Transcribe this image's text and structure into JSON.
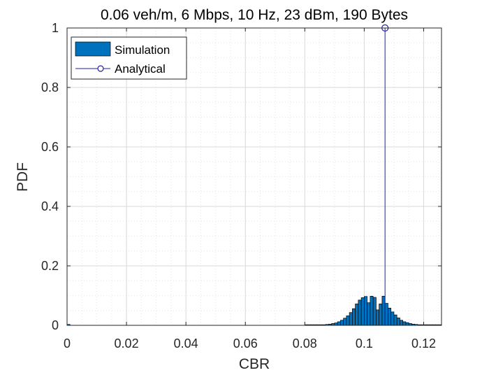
{
  "chart_data": {
    "type": "bar",
    "title": "0.06 veh/m, 6 Mbps, 10 Hz, 23 dBm, 190 Bytes",
    "xlabel": "CBR",
    "ylabel": "PDF",
    "xlim": [
      0,
      0.126
    ],
    "ylim": [
      0,
      1
    ],
    "xticks": [
      0,
      0.02,
      0.04,
      0.06,
      0.08,
      0.1,
      0.12
    ],
    "xtick_labels": [
      "0",
      "0.02",
      "0.04",
      "0.06",
      "0.08",
      "0.1",
      "0.12"
    ],
    "yticks": [
      0,
      0.2,
      0.4,
      0.6,
      0.8,
      1
    ],
    "ytick_labels": [
      "0",
      "0.2",
      "0.4",
      "0.6",
      "0.8",
      "1"
    ],
    "grid": "on",
    "minor_grid": "on",
    "legend_location": "top-left",
    "series": [
      {
        "name": "Simulation",
        "kind": "histogram",
        "color": "#0072BD",
        "bin_width": 0.001,
        "x": [
          0.0005,
          0.0805,
          0.0815,
          0.0825,
          0.0835,
          0.0845,
          0.0855,
          0.0865,
          0.0875,
          0.0885,
          0.0895,
          0.0905,
          0.0915,
          0.0925,
          0.0935,
          0.0945,
          0.0955,
          0.0965,
          0.0975,
          0.0985,
          0.0995,
          0.1005,
          0.1015,
          0.1025,
          0.1035,
          0.1045,
          0.1055,
          0.1065,
          0.1075,
          0.1085,
          0.1095,
          0.1105,
          0.1115,
          0.1125,
          0.1135,
          0.1145,
          0.1155,
          0.1165,
          0.1175,
          0.1185,
          0.1195,
          0.1205,
          0.1215,
          0.1225,
          0.1235,
          0.1245,
          0.1255
        ],
        "values": [
          0.003,
          0.002,
          0.002,
          0.002,
          0.002,
          0.002,
          0.002,
          0.002,
          0.003,
          0.004,
          0.006,
          0.008,
          0.012,
          0.017,
          0.024,
          0.032,
          0.043,
          0.056,
          0.072,
          0.085,
          0.093,
          0.097,
          0.076,
          0.098,
          0.094,
          0.052,
          0.072,
          0.098,
          0.074,
          0.058,
          0.045,
          0.035,
          0.025,
          0.017,
          0.012,
          0.009,
          0.006,
          0.004,
          0.003,
          0.002,
          0.002,
          0.002,
          0.002,
          0.002,
          0.002,
          0.002,
          0.002
        ]
      },
      {
        "name": "Analytical",
        "kind": "stem",
        "color": "#1F1FA8",
        "x": [
          0.107
        ],
        "values": [
          1
        ]
      }
    ]
  }
}
